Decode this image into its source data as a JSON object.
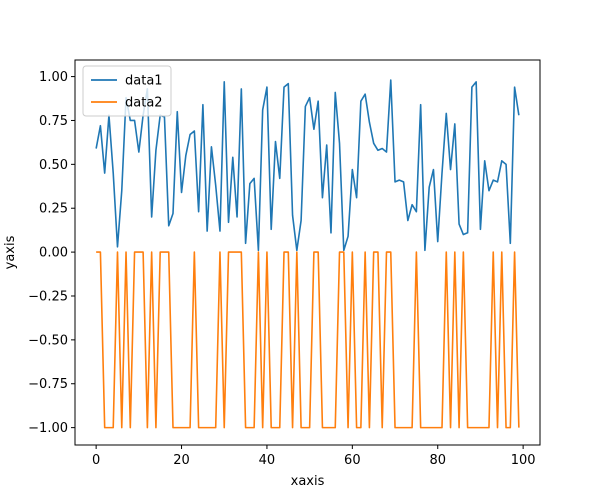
{
  "chart_data": {
    "type": "line",
    "title": "",
    "xlabel": "xaxis",
    "ylabel": "yaxis",
    "xlim": [
      -4.95,
      103.95
    ],
    "ylim": [
      -1.099,
      1.0945
    ],
    "xticks": [
      0,
      20,
      40,
      60,
      80,
      100
    ],
    "xtick_labels": [
      "0",
      "20",
      "40",
      "60",
      "80",
      "100"
    ],
    "yticks": [
      -1.0,
      -0.75,
      -0.5,
      -0.25,
      0.0,
      0.25,
      0.5,
      0.75,
      1.0
    ],
    "ytick_labels": [
      "−1.00",
      "−0.75",
      "−0.50",
      "−0.25",
      "0.00",
      "0.25",
      "0.50",
      "0.75",
      "1.00"
    ],
    "grid": false,
    "legend_location": "top-left",
    "series": [
      {
        "name": "data1",
        "color": "#1f77b4",
        "x": [
          0,
          1,
          2,
          3,
          4,
          5,
          6,
          7,
          8,
          9,
          10,
          11,
          12,
          13,
          14,
          15,
          16,
          17,
          18,
          19,
          20,
          21,
          22,
          23,
          24,
          25,
          26,
          27,
          28,
          29,
          30,
          31,
          32,
          33,
          34,
          35,
          36,
          37,
          38,
          39,
          40,
          41,
          42,
          43,
          44,
          45,
          46,
          47,
          48,
          49,
          50,
          51,
          52,
          53,
          54,
          55,
          56,
          57,
          58,
          59,
          60,
          61,
          62,
          63,
          64,
          65,
          66,
          67,
          68,
          69,
          70,
          71,
          72,
          73,
          74,
          75,
          76,
          77,
          78,
          79,
          80,
          81,
          82,
          83,
          84,
          85,
          86,
          87,
          88,
          89,
          90,
          91,
          92,
          93,
          94,
          95,
          96,
          97,
          98,
          99
        ],
        "values": [
          0.59,
          0.72,
          0.45,
          0.78,
          0.45,
          0.03,
          0.35,
          0.88,
          0.75,
          0.75,
          0.57,
          0.78,
          0.93,
          0.2,
          0.58,
          0.78,
          0.77,
          0.15,
          0.22,
          0.8,
          0.34,
          0.55,
          0.67,
          0.69,
          0.23,
          0.84,
          0.12,
          0.6,
          0.38,
          0.12,
          0.97,
          0.17,
          0.54,
          0.2,
          0.93,
          0.05,
          0.39,
          0.42,
          0.01,
          0.81,
          0.94,
          0.13,
          0.63,
          0.42,
          0.94,
          0.96,
          0.21,
          0.01,
          0.18,
          0.83,
          0.88,
          0.7,
          0.86,
          0.31,
          0.61,
          0.11,
          0.91,
          0.62,
          0.01,
          0.09,
          0.47,
          0.31,
          0.86,
          0.9,
          0.74,
          0.62,
          0.58,
          0.59,
          0.57,
          0.98,
          0.4,
          0.41,
          0.4,
          0.18,
          0.27,
          0.23,
          0.84,
          0.01,
          0.37,
          0.47,
          0.06,
          0.45,
          0.79,
          0.47,
          0.73,
          0.16,
          0.1,
          0.11,
          0.94,
          0.97,
          0.13,
          0.52,
          0.35,
          0.41,
          0.4,
          0.52,
          0.5,
          0.05,
          0.94,
          0.78
        ]
      },
      {
        "name": "data2",
        "color": "#ff7f0e",
        "x": [
          0,
          1,
          2,
          3,
          4,
          5,
          6,
          7,
          8,
          9,
          10,
          11,
          12,
          13,
          14,
          15,
          16,
          17,
          18,
          19,
          20,
          21,
          22,
          23,
          24,
          25,
          26,
          27,
          28,
          29,
          30,
          31,
          32,
          33,
          34,
          35,
          36,
          37,
          38,
          39,
          40,
          41,
          42,
          43,
          44,
          45,
          46,
          47,
          48,
          49,
          50,
          51,
          52,
          53,
          54,
          55,
          56,
          57,
          58,
          59,
          60,
          61,
          62,
          63,
          64,
          65,
          66,
          67,
          68,
          69,
          70,
          71,
          72,
          73,
          74,
          75,
          76,
          77,
          78,
          79,
          80,
          81,
          82,
          83,
          84,
          85,
          86,
          87,
          88,
          89,
          90,
          91,
          92,
          93,
          94,
          95,
          96,
          97,
          98,
          99
        ],
        "values": [
          0,
          0,
          -1,
          -1,
          -1,
          0,
          -1,
          0,
          -1,
          0,
          0,
          0,
          -1,
          0,
          -1,
          0,
          0,
          0,
          -1,
          -1,
          -1,
          -1,
          -1,
          0,
          -1,
          -1,
          -1,
          -1,
          -1,
          0,
          -1,
          0,
          0,
          0,
          0,
          -1,
          -1,
          -1,
          0,
          -1,
          0,
          -1,
          -1,
          -1,
          0,
          0,
          -1,
          0,
          -1,
          -1,
          -1,
          0,
          0,
          -1,
          -1,
          -1,
          -1,
          0,
          0,
          -1,
          0,
          -1,
          -1,
          0,
          -1,
          0,
          0,
          -1,
          0,
          0,
          -1,
          -1,
          -1,
          -1,
          -1,
          0,
          -1,
          -1,
          -1,
          -1,
          -1,
          -1,
          0,
          -1,
          0,
          -1,
          0,
          -1,
          -1,
          -1,
          -1,
          -1,
          -1,
          0,
          -1,
          0,
          -1,
          -1,
          0,
          -1
        ]
      }
    ]
  }
}
